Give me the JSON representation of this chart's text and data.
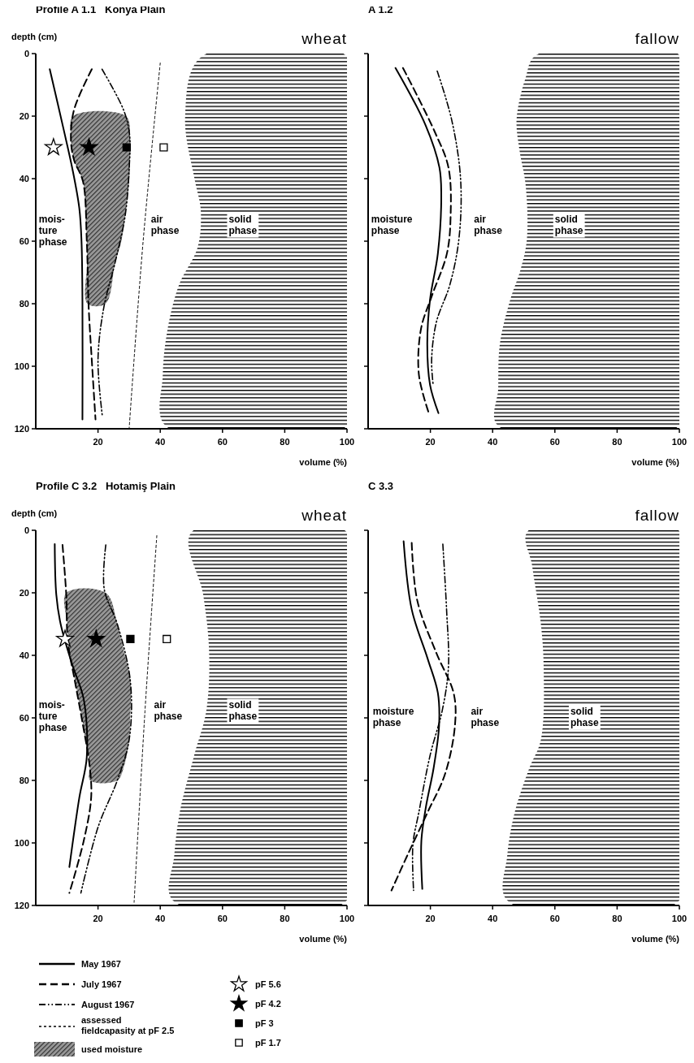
{
  "chart_data": [
    {
      "type": "line",
      "title": "Profile A 1.1   Konya Plain",
      "subtitle": "wheat",
      "xlabel": "volume (%)",
      "ylabel": "depth (cm)",
      "xlim": [
        0,
        100
      ],
      "xticks": [
        20,
        40,
        60,
        80,
        100
      ],
      "ylim": [
        120,
        0
      ],
      "yticks": [
        0,
        20,
        40,
        60,
        80,
        100,
        120
      ],
      "annotations": [
        "mois-\nture\nphase",
        "air\nphase",
        "solid\nphase"
      ],
      "series": [
        {
          "type": "area",
          "color": "#000000",
          "x": [
            53.3,
            48,
            51,
            53,
            52,
            46,
            42.2,
            40.8,
            41.7,
            100,
            100
          ],
          "values": [
            1,
            20,
            40,
            50,
            62,
            74,
            89,
            103,
            119,
            119,
            1
          ]
        },
        {
          "type": "area",
          "color": "#9a9a9a",
          "x": [
            12,
            11.3,
            12.3,
            15.2,
            16,
            16.4,
            16.5,
            16.6,
            22.4,
            25.5,
            27.5,
            28.7,
            30,
            30.3,
            30.3,
            29
          ],
          "values": [
            20,
            27,
            34,
            41,
            52,
            60,
            67,
            80,
            80,
            67,
            60,
            52,
            41,
            34,
            27,
            20
          ]
        },
        {
          "type": "line",
          "color": "#000000",
          "line_style": "solid",
          "x": [
            4.5,
            8.9,
            11.8,
            14,
            14.7,
            15,
            15
          ],
          "values": [
            5,
            24,
            37,
            49.5,
            60,
            79,
            117
          ]
        },
        {
          "type": "line",
          "color": "#000000",
          "line_style": "dashed",
          "x": [
            18,
            12.3,
            11.3,
            12.3,
            15.2,
            16.4,
            17,
            18,
            19.2
          ],
          "values": [
            5,
            18,
            27.5,
            34,
            41,
            60,
            81,
            98,
            117
          ]
        },
        {
          "type": "line",
          "color": "#000000",
          "line_style": "dashdot",
          "x": [
            21.3,
            28.2,
            30.1,
            30,
            28.7,
            25.3,
            21.9,
            20,
            21.4
          ],
          "values": [
            5,
            18,
            25.6,
            37,
            52,
            67.6,
            81,
            98,
            116
          ]
        },
        {
          "type": "line",
          "color": "#000000",
          "line_style": "dotted",
          "x": [
            40,
            34.5,
            30
          ],
          "values": [
            3,
            60,
            120
          ]
        },
        {
          "type": "scatter",
          "color": "#ffffff",
          "marker": "star",
          "x": [
            5.7
          ],
          "values": [
            30
          ]
        },
        {
          "type": "scatter",
          "color": "#000000",
          "marker": "star",
          "x": [
            17.1
          ],
          "values": [
            30
          ]
        },
        {
          "type": "scatter",
          "color": "#000000",
          "marker": "square",
          "x": [
            29.2
          ],
          "values": [
            30
          ]
        },
        {
          "type": "scatter",
          "color": "#ffffff",
          "marker": "square",
          "x": [
            41.1
          ],
          "values": [
            30
          ]
        }
      ]
    },
    {
      "type": "line",
      "title": "A 1.2",
      "subtitle": "fallow",
      "xlabel": "volume (%)",
      "xlim": [
        0,
        100
      ],
      "xticks": [
        20,
        40,
        60,
        80,
        100
      ],
      "ylim": [
        120,
        0
      ],
      "yticks": [
        0,
        20,
        40,
        60,
        80,
        100,
        120
      ],
      "tick_labels": "x",
      "annotations": [
        "moisture\nphase",
        "air\nphase",
        "solid\nphase"
      ],
      "series": [
        {
          "type": "area",
          "color": "#000000",
          "x": [
            54,
            50.6,
            47.7,
            48.6,
            50.6,
            51,
            49,
            45.7,
            42.3,
            41.8,
            41.6,
            100,
            100
          ],
          "values": [
            0.5,
            7.7,
            21,
            30.7,
            42,
            59.4,
            69,
            78.6,
            93,
            107,
            118.9,
            118.9,
            0.5
          ]
        },
        {
          "type": "line",
          "color": "#000000",
          "line_style": "solid",
          "x": [
            8.8,
            18.5,
            22.9,
            23.5,
            22.4,
            19.9,
            19,
            19.9,
            22.6
          ],
          "values": [
            4.6,
            23,
            36.4,
            45,
            64,
            78.6,
            93,
            106,
            115
          ]
        },
        {
          "type": "line",
          "color": "#000000",
          "line_style": "dashed",
          "x": [
            11.2,
            21.4,
            25.8,
            26.5,
            25.3,
            20.4,
            17,
            16.3,
            19.5
          ],
          "values": [
            4.6,
            25,
            36.4,
            52,
            64,
            77.7,
            88,
            102.6,
            115
          ]
        },
        {
          "type": "line",
          "color": "#000000",
          "line_style": "dashdot",
          "x": [
            22.2,
            26.8,
            29.7,
            29.2,
            26.3,
            21.9,
            20.4,
            20.9
          ],
          "values": [
            5.6,
            21,
            40,
            59,
            73.8,
            86,
            98,
            106
          ]
        }
      ]
    },
    {
      "type": "line",
      "title": "Profile C 3.2   Hotamiş Plain",
      "subtitle": "wheat",
      "xlabel": "volume (%)",
      "ylabel": "depth (cm)",
      "xlim": [
        0,
        100
      ],
      "xticks": [
        20,
        40,
        60,
        80,
        100
      ],
      "ylim": [
        120,
        0
      ],
      "yticks": [
        0,
        20,
        40,
        60,
        80,
        100,
        120
      ],
      "legend": "bottom",
      "annotations": [
        "mois-\nture\nphase",
        "air\nphase",
        "solid\nphase"
      ],
      "series": [
        {
          "type": "area",
          "color": "#000000",
          "x": [
            50,
            53.8,
            55.7,
            54.8,
            51,
            46.3,
            44.5,
            44,
            100,
            100
          ],
          "values": [
            0.7,
            20.6,
            39,
            57.7,
            71.6,
            90,
            104,
            118.3,
            118.3,
            0.7
          ]
        },
        {
          "type": "line",
          "name": "May 1967",
          "color": "#000000",
          "line_style": "solid",
          "x": [
            6.1,
            6.6,
            8,
            11.7,
            15.4,
            16.4,
            14,
            10.8
          ],
          "values": [
            4.4,
            20.6,
            30,
            42.9,
            54,
            72.5,
            85.5,
            107.7
          ]
        },
        {
          "type": "line",
          "name": "July 1967",
          "color": "#000000",
          "line_style": "dashed",
          "x": [
            8.6,
            9.8,
            10.3,
            12.6,
            15,
            17.3,
            17.8,
            15.4,
            10.8
          ],
          "values": [
            4.7,
            20.6,
            35.5,
            48.4,
            61.4,
            75.3,
            85.5,
            99.4,
            116
          ]
        },
        {
          "type": "line",
          "name": "August 1967",
          "color": "#000000",
          "line_style": "dashdot",
          "x": [
            22.5,
            22,
            26.2,
            30.4,
            30,
            26.2,
            20.1,
            14.5
          ],
          "values": [
            4.7,
            18.8,
            30,
            48.4,
            67,
            80,
            94.7,
            116
          ]
        },
        {
          "type": "line",
          "name": "assessed\nfieldcapasity at pF 2.5",
          "color": "#000000",
          "line_style": "dotted",
          "x": [
            38.9,
            35.1,
            31.6
          ],
          "values": [
            1.7,
            57.7,
            119
          ]
        },
        {
          "type": "area",
          "name": "used moisture",
          "color": "#9a9a9a",
          "x": [
            9.8,
            10.1,
            10.3,
            12.6,
            15,
            16,
            17.3,
            17.5,
            26.2,
            28.5,
            30,
            30.3,
            30.4,
            27.5,
            26.2,
            22.5
          ],
          "values": [
            20,
            30,
            35.5,
            48,
            61,
            67,
            75,
            80,
            80,
            75,
            67,
            61,
            48,
            35.5,
            30,
            20
          ]
        },
        {
          "type": "scatter",
          "name": "pF 5.6",
          "color": "#ffffff",
          "marker": "star",
          "x": [
            9.4
          ],
          "values": [
            34.8
          ]
        },
        {
          "type": "scatter",
          "name": "pF 4.2",
          "color": "#000000",
          "marker": "star",
          "x": [
            19.4
          ],
          "values": [
            34.8
          ]
        },
        {
          "type": "scatter",
          "name": "pF 3",
          "color": "#000000",
          "marker": "square",
          "x": [
            30.4
          ],
          "values": [
            34.8
          ]
        },
        {
          "type": "scatter",
          "name": "pF 1.7",
          "color": "#ffffff",
          "marker": "square",
          "x": [
            42.1
          ],
          "values": [
            34.8
          ]
        }
      ]
    },
    {
      "type": "line",
      "title": "C 3.3",
      "subtitle": "fallow",
      "xlabel": "volume (%)",
      "xlim": [
        0,
        100
      ],
      "xticks": [
        20,
        40,
        60,
        80,
        100
      ],
      "ylim": [
        120,
        0
      ],
      "yticks": [
        0,
        20,
        40,
        60,
        80,
        100,
        120
      ],
      "tick_labels": "x",
      "annotations": [
        "moisture\nphase",
        "air\nphase",
        "solid\nphase"
      ],
      "series": [
        {
          "type": "area",
          "color": "#000000",
          "x": [
            51.3,
            52.7,
            55.5,
            56.4,
            55.5,
            51.7,
            47.1,
            44.7,
            44.7,
            100,
            100
          ],
          "values": [
            0.3,
            11.4,
            30,
            43.8,
            67,
            76.3,
            90.2,
            104,
            118.4,
            118.4,
            0.3
          ]
        },
        {
          "type": "line",
          "color": "#000000",
          "line_style": "solid",
          "x": [
            11.4,
            14,
            19.1,
            22.4,
            22.8,
            21,
            18.6,
            17.1,
            17.4
          ],
          "values": [
            3.5,
            25.3,
            41,
            52,
            62.4,
            76.3,
            88.3,
            99.4,
            114.7
          ]
        },
        {
          "type": "line",
          "color": "#000000",
          "line_style": "dashed",
          "x": [
            14,
            15.8,
            21.9,
            27.5,
            27.9,
            24.7,
            19.1,
            12.6,
            7.5
          ],
          "values": [
            4,
            22.5,
            39.2,
            52.2,
            62.4,
            78,
            90.2,
            104,
            115.2
          ]
        },
        {
          "type": "line",
          "color": "#000000",
          "line_style": "dashdot",
          "x": [
            24,
            25.2,
            25.8,
            23.8,
            20,
            16.3,
            14.4,
            14.6
          ],
          "values": [
            4.4,
            25.3,
            43.8,
            57.7,
            71.6,
            90.2,
            100.4,
            115.2
          ]
        }
      ]
    }
  ]
}
